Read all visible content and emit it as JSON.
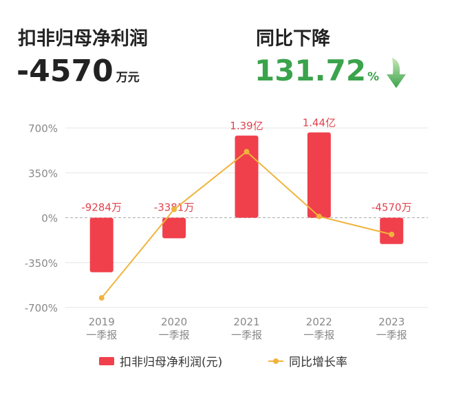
{
  "header": {
    "metric_title": "扣非归母净利润",
    "metric_value": "-4570",
    "metric_unit": "万元",
    "change_title": "同比下降",
    "change_value": "131.72",
    "change_unit": "%",
    "change_color": "#3aa34b"
  },
  "chart_data": {
    "type": "bar",
    "categories": [
      "2019\n一季报",
      "2020\n一季报",
      "2021\n一季报",
      "2022\n一季报",
      "2023\n一季报"
    ],
    "yticks": [
      "700%",
      "350%",
      "0%",
      "-350%",
      "-700%"
    ],
    "ylim": [
      -700,
      700
    ],
    "grid": true,
    "legend_position": "bottom",
    "series": [
      {
        "name": "扣非归母净利润(元)",
        "type": "bar",
        "color": "#f0404c",
        "values": [
          -425,
          -160,
          640,
          665,
          -205
        ],
        "labels": [
          "-9284万",
          "-3381万",
          "1.39亿",
          "1.44亿",
          "-4570万"
        ]
      },
      {
        "name": "同比增长率",
        "type": "line",
        "color": "#f0b43c",
        "values": [
          -625,
          65,
          515,
          10,
          -130
        ]
      }
    ]
  }
}
